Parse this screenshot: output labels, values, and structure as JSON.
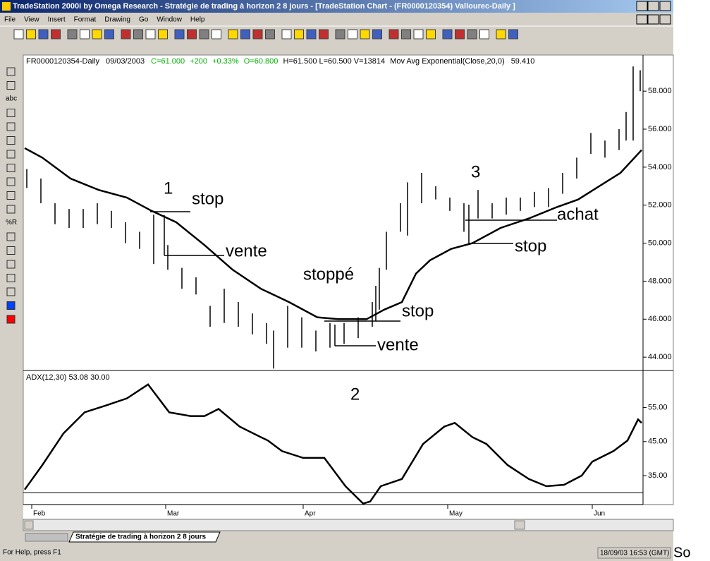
{
  "window": {
    "title": "TradeStation 2000i by Omega Research - Stratégie de trading à horizon 2 8 jours - [TradeStation Chart - (FR0000120354) Vallourec-Daily ]",
    "menu": [
      "File",
      "View",
      "Insert",
      "Format",
      "Drawing",
      "Go",
      "Window",
      "Help"
    ],
    "tools": [
      "abc",
      "%R"
    ],
    "tab": "Stratégie de trading à horizon 2 8 jours",
    "status": "For Help, press F1",
    "clock": "18/09/03 16:53 (GMT)",
    "trailing_text": "So"
  },
  "header": {
    "symbol": "FR0000120354-Daily",
    "date": "09/03/2003",
    "quote": [
      "C=61.000",
      "+200",
      "+0.33%",
      "O=60.800"
    ],
    "hlv": "H=61.500  L=60.500  V=13814",
    "indicator": "Mov Avg Exponential(Close,20,0)",
    "indicator_value": "59.410"
  },
  "chart_data": [
    {
      "type": "ohlc",
      "x": [
        0,
        2,
        4,
        6,
        8,
        10,
        12,
        14,
        16,
        18,
        20,
        22,
        24,
        26,
        28,
        30,
        32,
        34,
        35,
        37,
        39,
        41,
        43,
        45,
        47,
        49,
        50,
        51,
        53,
        54,
        56,
        58,
        60,
        62,
        64,
        66,
        68,
        70,
        72,
        74,
        76,
        78,
        80,
        82,
        84,
        85,
        86,
        87
      ],
      "high": [
        53.9,
        53.4,
        52.1,
        51.8,
        51.8,
        52.1,
        51.7,
        51.1,
        50.6,
        51.5,
        49.9,
        48.7,
        48.2,
        46.7,
        47.6,
        46.9,
        46.3,
        45.8,
        45.4,
        46.7,
        46.1,
        45.4,
        45.8,
        45.8,
        46.1,
        46.9,
        48.7,
        50.6,
        52.1,
        53.2,
        53.7,
        53.0,
        52.4,
        52.1,
        52.8,
        52.1,
        52.4,
        52.4,
        52.7,
        52.9,
        53.7,
        54.5,
        55.8,
        55.4,
        56.0,
        56.9,
        59.3,
        59.1
      ],
      "low": [
        52.9,
        52.1,
        51.0,
        50.8,
        50.8,
        51.0,
        50.8,
        50.0,
        49.7,
        48.9,
        48.6,
        47.6,
        47.3,
        45.6,
        45.8,
        45.6,
        45.2,
        44.7,
        43.4,
        44.5,
        44.5,
        44.3,
        44.5,
        44.7,
        45.0,
        45.6,
        46.5,
        48.6,
        50.6,
        50.4,
        52.1,
        52.3,
        51.7,
        50.6,
        51.3,
        51.3,
        51.5,
        51.7,
        51.9,
        51.9,
        52.6,
        53.4,
        54.7,
        54.5,
        54.9,
        55.4,
        55.4,
        58.0
      ],
      "color": "#000000",
      "ema": {
        "x": [
          -0.3,
          2.2,
          6.2,
          10.2,
          14.2,
          17.7,
          21.2,
          25.2,
          29.2,
          33.2,
          37.2,
          41.2,
          44.2,
          48.2,
          50.7,
          53.2,
          55.2,
          57.2,
          60.2,
          63.2,
          67.2,
          71.2,
          75.2,
          78.2,
          81.2,
          84.2,
          87.2
        ],
        "values": [
          55.0,
          54.5,
          53.4,
          52.8,
          52.4,
          51.7,
          51.1,
          49.9,
          48.6,
          47.6,
          46.9,
          46.1,
          46.0,
          46.0,
          46.5,
          46.9,
          48.4,
          49.1,
          49.7,
          50.0,
          50.8,
          51.3,
          51.9,
          52.3,
          53.0,
          53.7,
          54.9
        ],
        "color": "#000000"
      },
      "xlim": [
        -0.3,
        87.5
      ],
      "ylim": [
        43.3,
        59.9
      ],
      "yticks": [
        {
          "value": 44,
          "label": "44.000"
        },
        {
          "value": 46,
          "label": "46.000"
        },
        {
          "value": 48,
          "label": "48.000"
        },
        {
          "value": 50,
          "label": "50.000"
        },
        {
          "value": 52,
          "label": "52.000"
        },
        {
          "value": 54,
          "label": "54.000"
        },
        {
          "value": 56,
          "label": "56.000"
        },
        {
          "value": 58,
          "label": "58.000"
        }
      ],
      "annotations": [
        "1",
        "stop",
        "vente",
        "stoppé",
        "stop",
        "vente",
        "3",
        "achat",
        "stop"
      ]
    },
    {
      "type": "line",
      "title": "ADX(12,30)  53.08  30.00",
      "x": [
        -0.3,
        2.2,
        5.2,
        8.2,
        11.2,
        14.2,
        17.2,
        20.2,
        23.2,
        25.2,
        27.2,
        30.2,
        33.2,
        34.2,
        36.2,
        39.2,
        42.2,
        45.2,
        47.7,
        48.7,
        50.2,
        53.2,
        56.2,
        59.2,
        60.7,
        63.2,
        65.2,
        68.2,
        71.2,
        73.7,
        76.2,
        78.7,
        80.2,
        83.2,
        85.2,
        86.7,
        87.2
      ],
      "values": [
        30.9,
        38.1,
        47.4,
        53.6,
        55.6,
        57.7,
        61.8,
        53.6,
        52.5,
        52.5,
        54.6,
        49.4,
        46.3,
        45.3,
        42.2,
        40.2,
        40.2,
        31.9,
        26.8,
        27.4,
        31.9,
        34.0,
        44.3,
        49.4,
        50.5,
        46.3,
        44.3,
        38.1,
        34.0,
        31.9,
        32.3,
        35.0,
        39.1,
        42.2,
        45.3,
        51.5,
        50.5
      ],
      "color": "#000000",
      "level": 30,
      "xlim": [
        -0.3,
        87.5
      ],
      "ylim": [
        26.5,
        65.9
      ],
      "yticks": [
        {
          "value": 35,
          "label": "35.00"
        },
        {
          "value": 45,
          "label": "45.00"
        },
        {
          "value": 55,
          "label": "55.00"
        }
      ],
      "xticks": [
        {
          "value": 0.7,
          "label": "Feb"
        },
        {
          "value": 19.7,
          "label": "Mar"
        },
        {
          "value": 39.2,
          "label": "Apr"
        },
        {
          "value": 59.7,
          "label": "May"
        },
        {
          "value": 80.2,
          "label": "Jun"
        }
      ],
      "annotations": [
        "2"
      ]
    }
  ]
}
